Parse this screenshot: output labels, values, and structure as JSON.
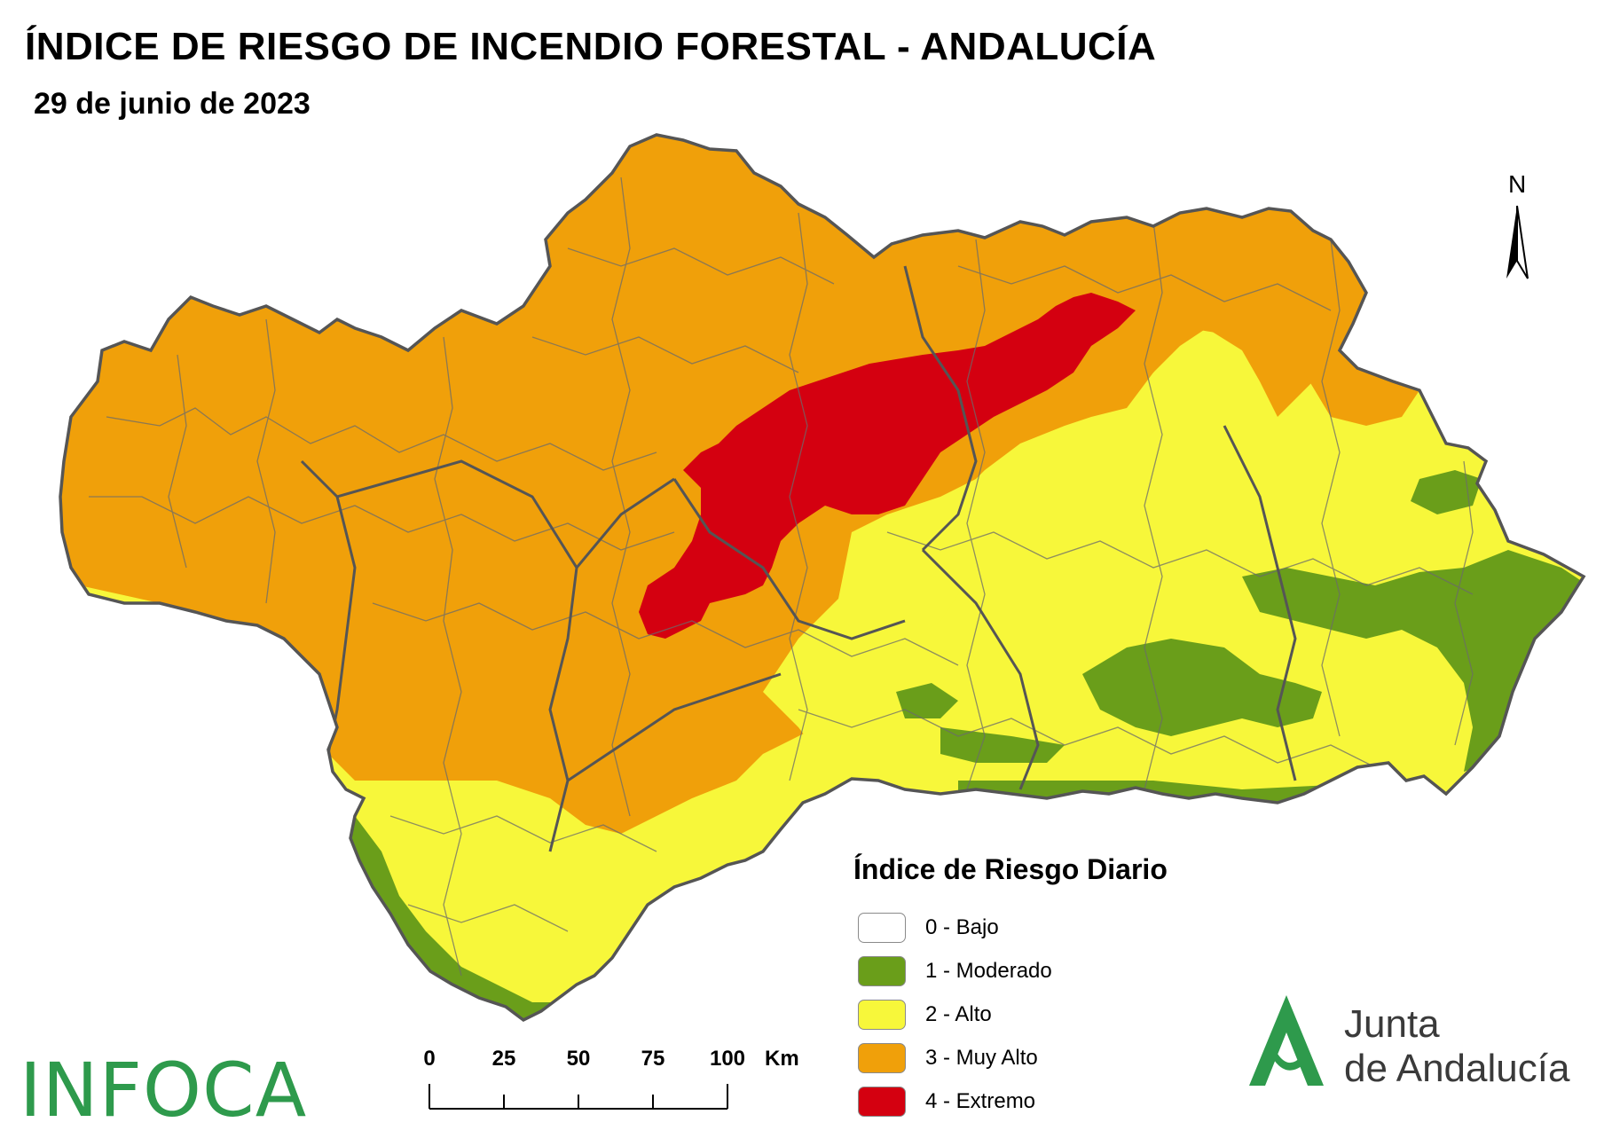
{
  "header": {
    "title": "ÍNDICE DE RIESGO DE INCENDIO FORESTAL - ANDALUCÍA",
    "date": "29 de junio de 2023"
  },
  "north_arrow": {
    "label": "N"
  },
  "legend": {
    "title": "Índice de Riesgo Diario",
    "items": [
      {
        "label": "0 - Bajo",
        "color": "#ffffff"
      },
      {
        "label": "1 - Moderado",
        "color": "#6a9e1a"
      },
      {
        "label": "2 - Alto",
        "color": "#f7f73a"
      },
      {
        "label": "3 - Muy Alto",
        "color": "#f0a00a"
      },
      {
        "label": "4 - Extremo",
        "color": "#d40010"
      }
    ]
  },
  "scale_bar": {
    "ticks": [
      "0",
      "25",
      "50",
      "75",
      "100"
    ],
    "unit": "Km"
  },
  "logos": {
    "infoca": "INFOCA",
    "junta_line1": "Junta",
    "junta_line2": "de Andalucía"
  },
  "colors": {
    "border": "#5a5a5a",
    "logo_green": "#2e9a4c"
  }
}
